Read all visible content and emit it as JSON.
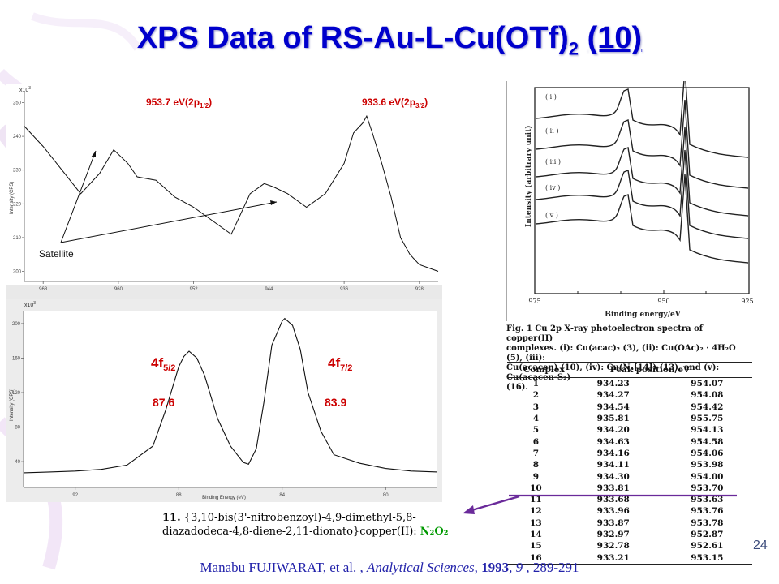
{
  "title": {
    "prefix": "XPS Data of RS-Au-L-Cu(OTf)",
    "sub": "2",
    "space": " ",
    "num": "(10)"
  },
  "top_panel": {
    "exp_label": "x10",
    "exp_sup": "3",
    "ylabel": "Intensity (CPS)",
    "peak1_label": "953.7 eV(2p",
    "peak1_sub": "1/2",
    "peak1_close": ")",
    "peak2_label": "933.6 eV(2p",
    "peak2_sub": "3/2",
    "peak2_close": ")",
    "satellite": "Satellite",
    "accent": "#cc0000"
  },
  "bottom_panel": {
    "exp_label": "x10",
    "exp_sup": "3",
    "ylabel": "Intensity (CPS)",
    "xlabel": "Binding Energy (eV)",
    "peak1_main": "4f",
    "peak1_sub": "5/2",
    "peak1_value": "87.6",
    "peak2_main": "4f",
    "peak2_sub": "7/2",
    "peak2_value": "83.9"
  },
  "right_panel": {
    "ylabel": "Intensity (arbitrary unit)",
    "xlabel": "Binding energy/eV",
    "traces": [
      "( i )",
      "( ii )",
      "( iii )",
      "( iv )",
      "( v )"
    ]
  },
  "chart_data": [
    {
      "type": "line",
      "xlabel": "",
      "ylabel": "Intensity (CPS)",
      "x_ticks": [
        968,
        960,
        952,
        944,
        936,
        928
      ],
      "y_ticks": [
        200,
        210,
        220,
        230,
        240,
        250
      ],
      "xlim": [
        970,
        926
      ],
      "ylim": [
        197,
        253
      ],
      "series": [
        {
          "x": [
            970,
            968,
            966,
            964,
            962,
            960.5,
            959,
            958,
            956,
            954,
            952,
            950,
            948,
            946,
            944.5,
            943.5,
            942,
            940,
            938,
            936,
            935,
            934,
            933.6,
            933,
            932,
            931,
            930,
            929,
            928,
            927,
            926
          ],
          "y": [
            243,
            237,
            230,
            223,
            229,
            236,
            232,
            228,
            227,
            222,
            219,
            215,
            211,
            223,
            226,
            225,
            223,
            219,
            223,
            232,
            241,
            244,
            246,
            241,
            232,
            222,
            210,
            205,
            202,
            201,
            200
          ]
        }
      ]
    },
    {
      "type": "line",
      "xlabel": "Binding Energy (eV)",
      "ylabel": "Intensity (CPS)",
      "x_ticks": [
        92,
        88,
        84,
        80
      ],
      "y_ticks": [
        40,
        80,
        120,
        160,
        200
      ],
      "xlim": [
        94,
        78
      ],
      "ylim": [
        10,
        215
      ],
      "series": [
        {
          "x": [
            94,
            93,
            92,
            91,
            90,
            89,
            88.5,
            88,
            87.8,
            87.6,
            87.3,
            87,
            86.5,
            86,
            85.5,
            85.3,
            85,
            84.7,
            84.4,
            84,
            83.9,
            83.6,
            83.3,
            83,
            82.5,
            82,
            81,
            80,
            79,
            78
          ],
          "y": [
            27,
            28,
            29,
            31,
            36,
            58,
            100,
            150,
            162,
            168,
            160,
            140,
            90,
            58,
            39,
            37,
            55,
            110,
            175,
            203,
            206,
            198,
            170,
            120,
            75,
            48,
            38,
            32,
            29,
            28
          ]
        }
      ]
    }
  ],
  "figure_caption": {
    "line1": "Fig. 1   Cu 2p  X-ray photoelectron spectra of copper(II)",
    "line2": "complexes.  (i): Cu(acac)₂ (3), (ii): Cu(OAc)₂ · 4H₂O (5), (iii):",
    "line3": "Cu(acacen) (10), (iv): Cu(N₄[14]) (13), and (v): Cu(acacen-S₂)",
    "line4": "(16)."
  },
  "table": {
    "headers": [
      "Complex",
      "Peak position/eV"
    ],
    "rows": [
      [
        "1",
        "934.23",
        "954.07"
      ],
      [
        "2",
        "934.27",
        "954.08"
      ],
      [
        "3",
        "934.54",
        "954.42"
      ],
      [
        "4",
        "935.81",
        "955.75"
      ],
      [
        "5",
        "934.20",
        "954.13"
      ],
      [
        "6",
        "934.63",
        "954.58"
      ],
      [
        "7",
        "934.16",
        "954.06"
      ],
      [
        "8",
        "934.11",
        "953.98"
      ],
      [
        "9",
        "934.30",
        "954.00"
      ],
      [
        "10",
        "933.81",
        "953.70"
      ],
      [
        "11",
        "933.68",
        "953.63"
      ],
      [
        "12",
        "933.96",
        "953.76"
      ],
      [
        "13",
        "933.87",
        "953.78"
      ],
      [
        "14",
        "932.97",
        "952.87"
      ],
      [
        "15",
        "932.78",
        "952.61"
      ],
      [
        "16",
        "933.21",
        "953.15"
      ]
    ],
    "highlight_color": "#6a2a9a"
  },
  "compound_caption": {
    "num": "11.",
    "text1": " {3,10-bis(3'-nitrobenzoyl)-4,9-dimethyl-5,8-",
    "text2": "diazadodeca-4,8-diene-2,11-dionato}copper(II): ",
    "donor_set": "N₂O₂"
  },
  "page_number": "24",
  "citation": {
    "authors": "Manabu FUJIWARAT, et al. , ",
    "journal": "Analytical Sciences",
    "sep": ", ",
    "year": "1993",
    "vol_sep": ", ",
    "volume": "9",
    "pages": " , 289-291"
  }
}
